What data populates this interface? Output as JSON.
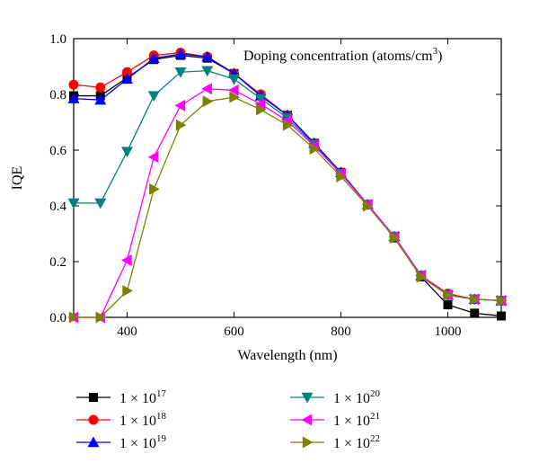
{
  "chart_data": {
    "type": "line",
    "xlabel": "Wavelength (nm)",
    "ylabel": "IQE",
    "xlim": [
      300,
      1100
    ],
    "ylim": [
      0,
      1.0
    ],
    "xticks": [
      400,
      600,
      800,
      1000
    ],
    "yticks": [
      0.0,
      0.2,
      0.4,
      0.6,
      0.8,
      1.0
    ],
    "annotation": {
      "prefix": "Doping concentration (atoms/cm",
      "sup": "3",
      "suffix": ")"
    },
    "grid": false,
    "legend_position": "below",
    "x": [
      300,
      350,
      400,
      450,
      500,
      550,
      600,
      650,
      700,
      750,
      800,
      850,
      900,
      950,
      1000,
      1050,
      1100
    ],
    "series": [
      {
        "name": "1 × 10^17",
        "mant": "1 × 10",
        "exp": "17",
        "color": "#000000",
        "marker": "square",
        "values": [
          0.795,
          0.795,
          0.86,
          0.925,
          0.94,
          0.93,
          0.875,
          0.795,
          0.725,
          0.625,
          0.52,
          0.405,
          0.285,
          0.145,
          0.045,
          0.015,
          0.005
        ]
      },
      {
        "name": "1 × 10^18",
        "mant": "1 × 10",
        "exp": "18",
        "color": "#ff0000",
        "marker": "circle",
        "values": [
          0.835,
          0.825,
          0.88,
          0.94,
          0.95,
          0.935,
          0.875,
          0.8,
          0.725,
          0.625,
          0.52,
          0.405,
          0.29,
          0.15,
          0.085,
          0.065,
          0.06
        ]
      },
      {
        "name": "1 × 10^19",
        "mant": "1 × 10",
        "exp": "19",
        "color": "#0000ff",
        "marker": "triangle-up",
        "values": [
          0.785,
          0.78,
          0.855,
          0.93,
          0.945,
          0.935,
          0.875,
          0.795,
          0.725,
          0.625,
          0.52,
          0.405,
          0.29,
          0.15,
          0.08,
          0.065,
          0.06
        ]
      },
      {
        "name": "1 × 10^20",
        "mant": "1 × 10",
        "exp": "20",
        "color": "#008080",
        "marker": "triangle-down",
        "values": [
          0.41,
          0.41,
          0.595,
          0.795,
          0.88,
          0.885,
          0.855,
          0.785,
          0.715,
          0.62,
          0.515,
          0.405,
          0.29,
          0.15,
          0.08,
          0.065,
          0.06
        ]
      },
      {
        "name": "1 × 10^21",
        "mant": "1 × 10",
        "exp": "21",
        "color": "#ff00ff",
        "marker": "triangle-left",
        "values": [
          0.0,
          0.0,
          0.205,
          0.575,
          0.76,
          0.82,
          0.815,
          0.765,
          0.705,
          0.615,
          0.515,
          0.405,
          0.29,
          0.15,
          0.08,
          0.065,
          0.06
        ]
      },
      {
        "name": "1 × 10^22",
        "mant": "1 × 10",
        "exp": "22",
        "color": "#808000",
        "marker": "triangle-right",
        "values": [
          0.0,
          0.0,
          0.095,
          0.46,
          0.69,
          0.775,
          0.79,
          0.745,
          0.69,
          0.605,
          0.505,
          0.4,
          0.285,
          0.145,
          0.08,
          0.065,
          0.06
        ]
      }
    ]
  }
}
